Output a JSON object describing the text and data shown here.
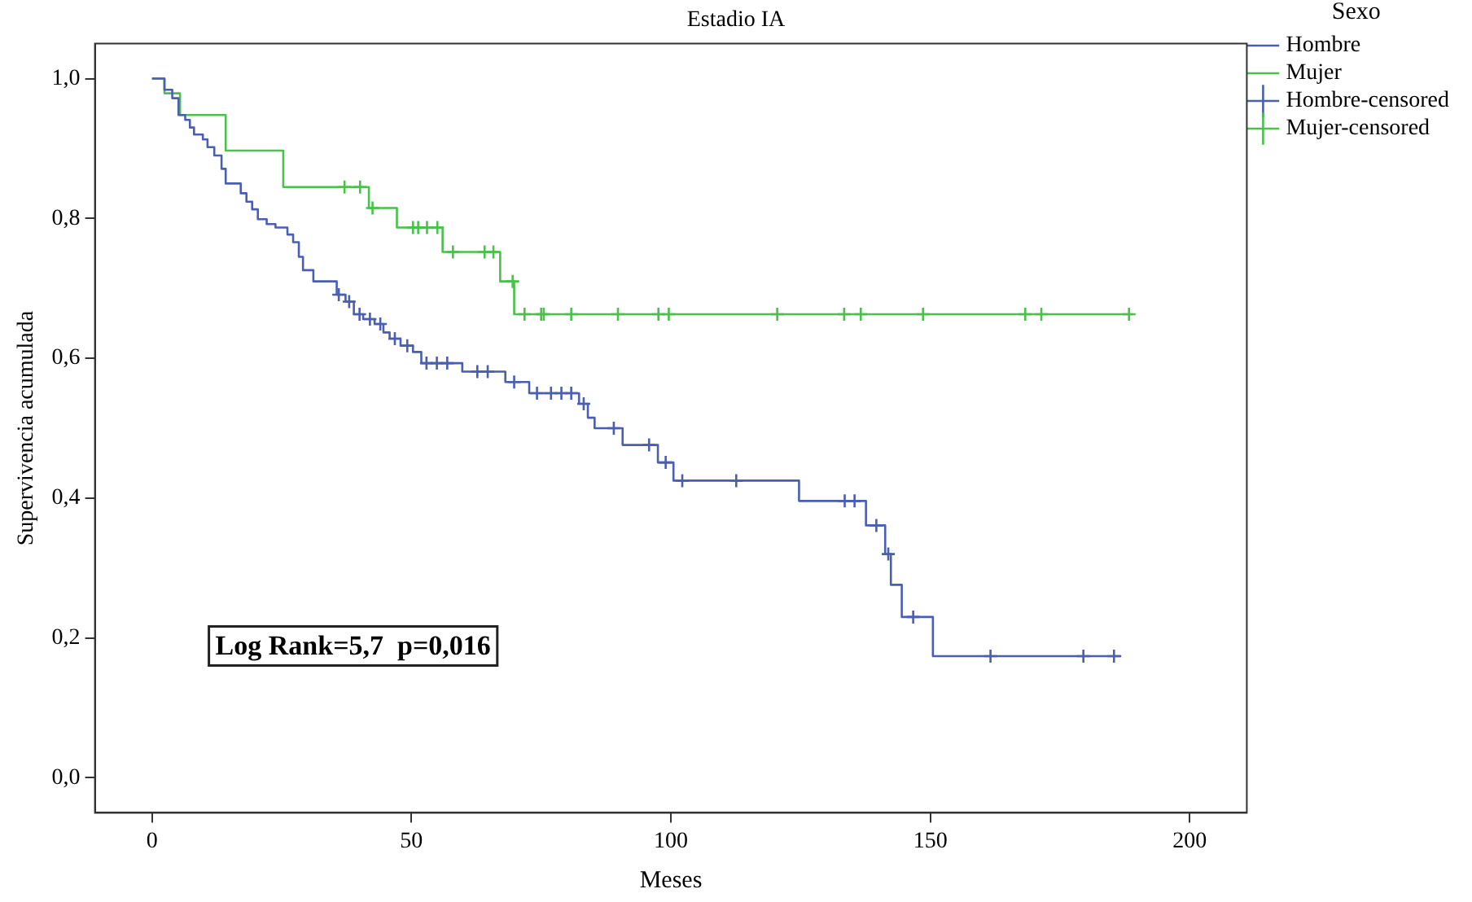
{
  "chart_data": {
    "type": "step",
    "title": "Estadio IA",
    "xlabel": "Meses",
    "ylabel": "Supervivencia acumulada",
    "legend_title": "Sexo",
    "legend": "right",
    "grid": false,
    "xlim": [
      -11,
      211
    ],
    "xticks": [
      0,
      50,
      100,
      150,
      200
    ],
    "ylim": [
      -0.05,
      1.05
    ],
    "yticks": [
      {
        "value": 0,
        "label": "0,0"
      },
      {
        "value": 0.2,
        "label": "0,2"
      },
      {
        "value": 0.4,
        "label": "0,4"
      },
      {
        "value": 0.6,
        "label": "0,6"
      },
      {
        "value": 0.8,
        "label": "0,8"
      },
      {
        "value": 1,
        "label": "1,0"
      }
    ],
    "annotations": [
      "Log Rank=5,7  p=0,016"
    ],
    "series": [
      {
        "name": "Hombre",
        "type": "step",
        "color": "#4a5fb0",
        "marker": "none",
        "x": [
          0,
          2.4,
          3.9,
          5.1,
          6.4,
          7.3,
          8.1,
          9.8,
          10.7,
          12.0,
          13.4,
          14.2,
          17.1,
          18.2,
          19.3,
          20.4,
          22.1,
          23.8,
          26.1,
          27.2,
          28.3,
          29.1,
          31.1,
          35.6,
          37.3,
          38.9,
          40.7,
          42.9,
          44.6,
          45.8,
          47.9,
          50.3,
          51.9,
          59.8,
          68.1,
          72.7,
          82.3,
          84.0,
          85.3,
          90.7,
          97.5,
          100.5,
          124.7,
          137.6,
          141.3,
          142.4,
          144.5,
          150.5,
          186.8
        ],
        "values": [
          1.0,
          0.984,
          0.972,
          0.948,
          0.941,
          0.93,
          0.92,
          0.913,
          0.902,
          0.89,
          0.871,
          0.85,
          0.836,
          0.824,
          0.813,
          0.799,
          0.792,
          0.787,
          0.777,
          0.766,
          0.745,
          0.726,
          0.71,
          0.691,
          0.681,
          0.663,
          0.656,
          0.649,
          0.637,
          0.628,
          0.618,
          0.609,
          0.593,
          0.581,
          0.566,
          0.55,
          0.535,
          0.515,
          0.5,
          0.476,
          0.451,
          0.425,
          0.396,
          0.361,
          0.32,
          0.276,
          0.23,
          0.174,
          0.174
        ]
      },
      {
        "name": "Mujer",
        "type": "step",
        "color": "#4cbf4c",
        "marker": "none",
        "x": [
          0,
          2.4,
          5.4,
          14.2,
          25.3,
          41.8,
          47.2,
          56.0,
          67.1,
          69.8,
          189.0
        ],
        "values": [
          1.0,
          0.979,
          0.948,
          0.897,
          0.845,
          0.815,
          0.787,
          0.752,
          0.71,
          0.663,
          0.663
        ]
      },
      {
        "name": "Hombre-censored",
        "type": "scatter",
        "color": "#4a5fb0",
        "marker": "cross",
        "x": [
          36.0,
          38.0,
          40.0,
          42.0,
          44.0,
          46.8,
          49.2,
          52.9,
          54.9,
          56.9,
          62.7,
          64.7,
          69.8,
          74.2,
          76.9,
          78.9,
          80.8,
          83.2,
          89.0,
          95.8,
          99.0,
          102.2,
          112.6,
          133.5,
          135.4,
          139.6,
          141.9,
          146.7,
          161.6,
          179.5,
          185.4
        ],
        "values": [
          0.691,
          0.681,
          0.663,
          0.656,
          0.649,
          0.628,
          0.618,
          0.593,
          0.593,
          0.593,
          0.581,
          0.581,
          0.566,
          0.55,
          0.55,
          0.55,
          0.55,
          0.535,
          0.5,
          0.476,
          0.451,
          0.425,
          0.425,
          0.396,
          0.396,
          0.361,
          0.32,
          0.23,
          0.174,
          0.174,
          0.174
        ]
      },
      {
        "name": "Mujer-censored",
        "type": "scatter",
        "color": "#4cbf4c",
        "marker": "cross",
        "x": [
          37.1,
          40.1,
          42.5,
          50.3,
          51.3,
          53.0,
          55.0,
          58.0,
          64.1,
          65.8,
          69.5,
          71.8,
          75.0,
          75.5,
          80.8,
          89.8,
          97.6,
          99.6,
          120.5,
          133.4,
          136.6,
          148.6,
          168.3,
          171.4,
          188.3
        ],
        "values": [
          0.845,
          0.845,
          0.815,
          0.787,
          0.787,
          0.787,
          0.787,
          0.752,
          0.752,
          0.752,
          0.71,
          0.663,
          0.663,
          0.663,
          0.663,
          0.663,
          0.663,
          0.663,
          0.663,
          0.663,
          0.663,
          0.663,
          0.663,
          0.663,
          0.663
        ]
      }
    ]
  }
}
